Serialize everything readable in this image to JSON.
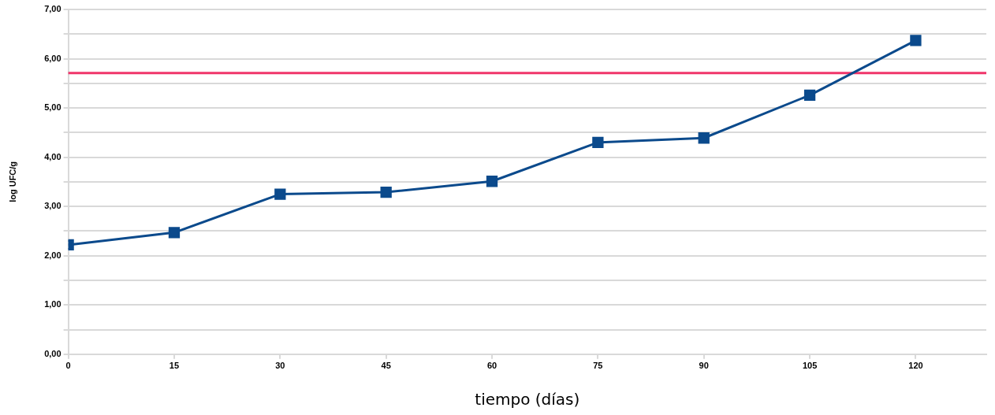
{
  "chart_data": {
    "type": "line",
    "xlabel": "tiempo (días)",
    "ylabel": "log UFC/g",
    "x": [
      0,
      15,
      30,
      45,
      60,
      75,
      90,
      105,
      120
    ],
    "series": [
      {
        "color": "#0b4a8c",
        "values": [
          2.22,
          2.47,
          3.25,
          3.29,
          3.51,
          4.3,
          4.39,
          5.26,
          6.37
        ]
      }
    ],
    "xlim": [
      0,
      130
    ],
    "xticks": [
      0,
      15,
      30,
      45,
      60,
      75,
      90,
      105,
      120
    ],
    "ylim": [
      0,
      7
    ],
    "yticks": [
      {
        "value": 0,
        "label": "0,00"
      },
      {
        "value": 0.5,
        "label": null
      },
      {
        "value": 1,
        "label": "1,00"
      },
      {
        "value": 1.5,
        "label": null
      },
      {
        "value": 2,
        "label": "2,00"
      },
      {
        "value": 2.5,
        "label": null
      },
      {
        "value": 3,
        "label": "3,00"
      },
      {
        "value": 3.5,
        "label": null
      },
      {
        "value": 4,
        "label": "4,00"
      },
      {
        "value": 4.5,
        "label": null
      },
      {
        "value": 5,
        "label": "5,00"
      },
      {
        "value": 5.5,
        "label": null
      },
      {
        "value": 6,
        "label": "6,00"
      },
      {
        "value": 6.5,
        "label": null
      },
      {
        "value": 7,
        "label": "7,00"
      }
    ],
    "ref_lines": [
      {
        "axis": "y",
        "value": 5.71,
        "color": "#f0356a"
      }
    ],
    "grid": "y",
    "legend": false,
    "marker": "square",
    "line_style": "solid"
  }
}
